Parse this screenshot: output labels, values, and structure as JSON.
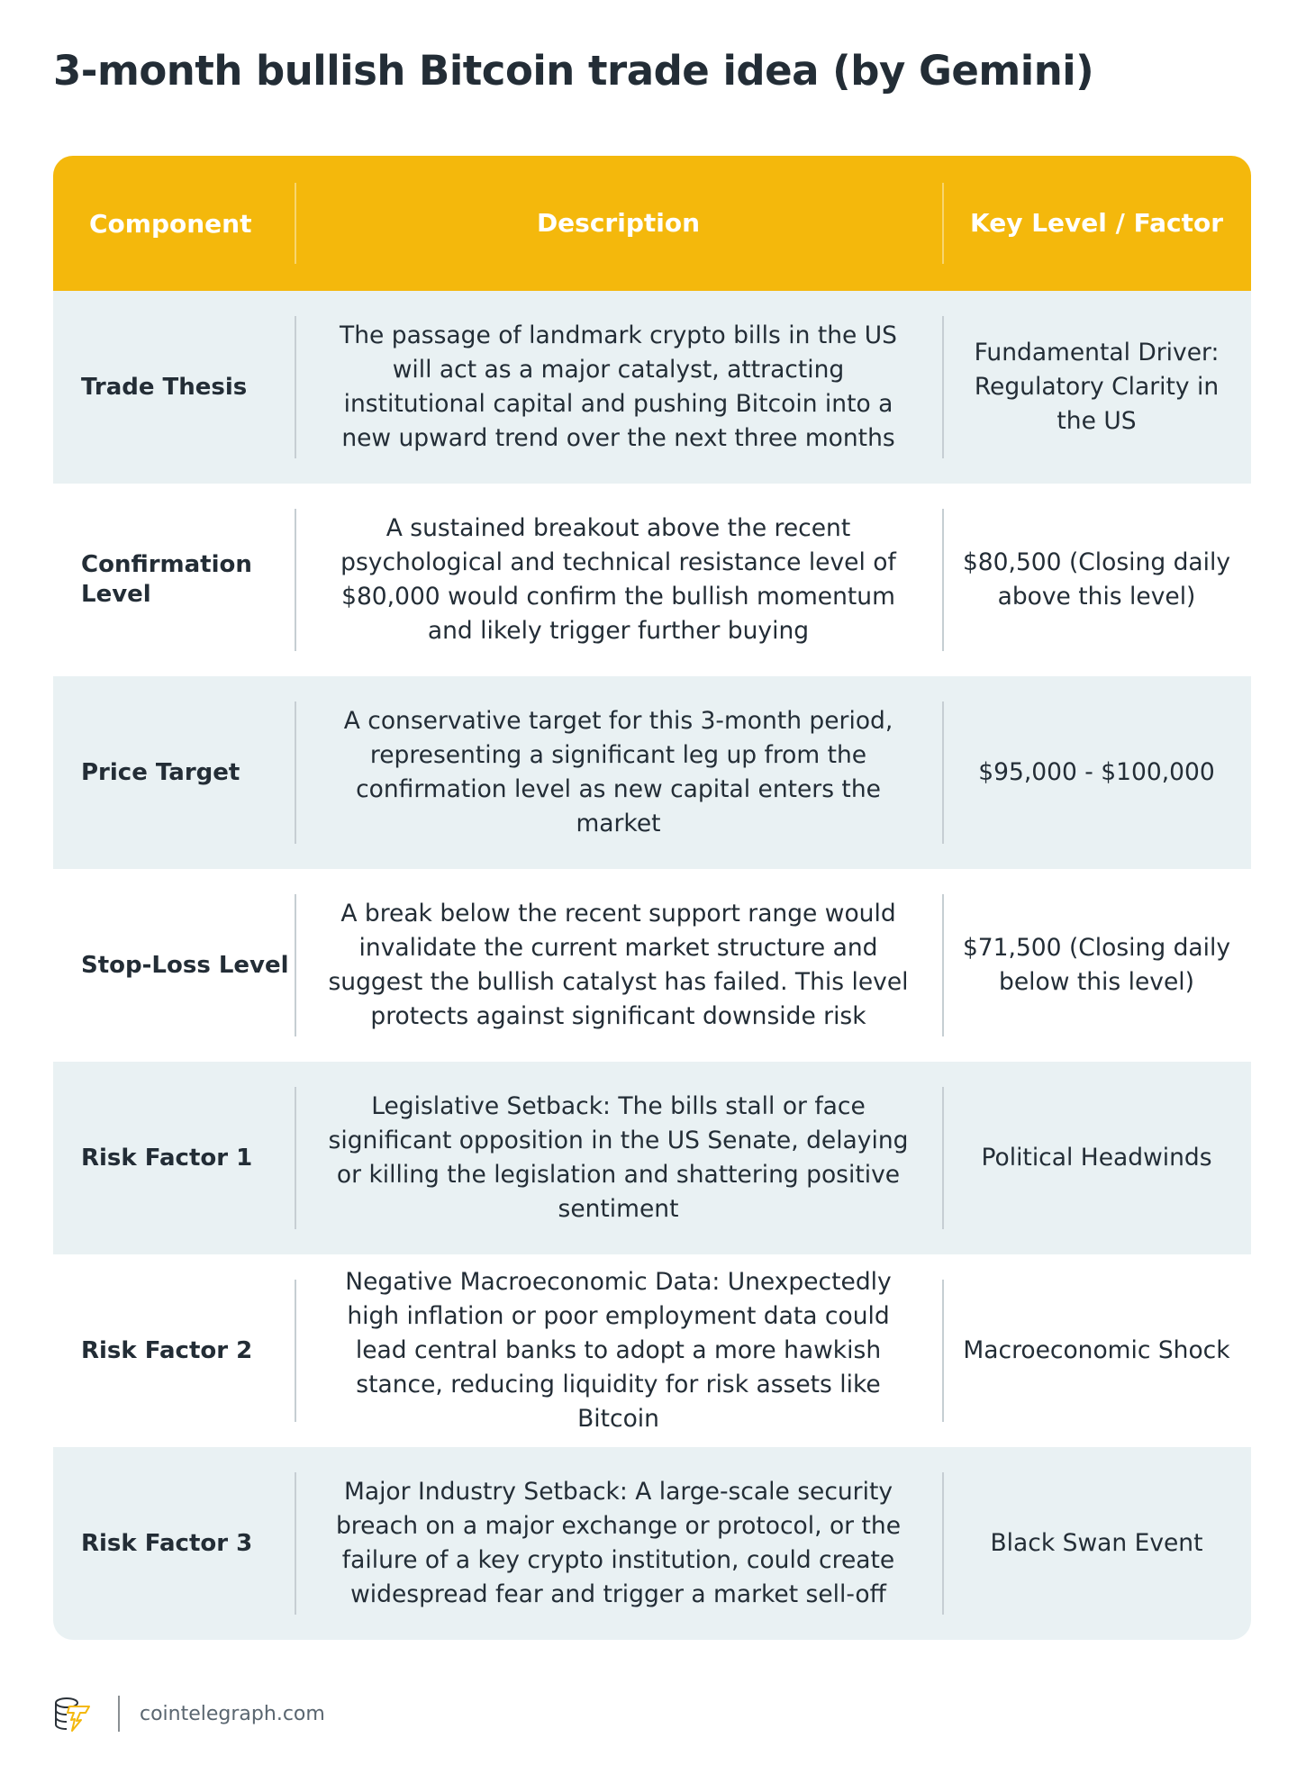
{
  "title": "3-month bullish Bitcoin trade idea (by Gemini)",
  "table": {
    "headers": [
      "Component",
      "Description",
      "Key Level / Factor"
    ],
    "rows": [
      {
        "component": "Trade Thesis",
        "description": "The passage of landmark crypto bills in the US will act as a major catalyst, attracting institutional capital and pushing Bitcoin into a new upward trend over the next three months",
        "key": "Fundamental Driver: Regulatory Clarity in the US"
      },
      {
        "component": "Confirmation Level",
        "description": "A sustained breakout above the recent psychological and technical resistance level of $80,000 would confirm the bullish momentum and likely trigger further buying",
        "key": "$80,500 (Closing daily above this level)"
      },
      {
        "component": "Price Target",
        "description": "A conservative target for this 3-month period, representing a significant leg up from the confirmation level as new capital enters the market",
        "key": "$95,000 - $100,000"
      },
      {
        "component": "Stop-Loss Level",
        "description": "A break below the recent support range would invalidate the current market structure and suggest the bullish catalyst has failed. This level protects against significant downside risk",
        "key": "$71,500 (Closing daily below this level)"
      },
      {
        "component": "Risk Factor 1",
        "description": "Legislative Setback: The bills stall or face significant opposition in the US Senate, delaying or killing the legislation and shattering positive sentiment",
        "key": "Political Headwinds"
      },
      {
        "component": "Risk Factor 2",
        "description": "Negative Macroeconomic Data: Unexpectedly high inflation or poor employment data could lead central banks to adopt a more hawkish stance, reducing liquidity for risk assets like Bitcoin",
        "key": "Macroeconomic Shock"
      },
      {
        "component": "Risk Factor 3",
        "description": "Major Industry Setback: A large-scale security breach on a major exchange or protocol, or the failure of a key crypto institution, could create widespread fear and trigger a market sell-off",
        "key": "Black Swan Event"
      }
    ]
  },
  "footer": {
    "site": "cointelegraph.com",
    "logo_icon": "cointelegraph-logo-icon"
  },
  "colors": {
    "header": "#f4b80c",
    "alt_row": "#e9f1f3",
    "text": "#232d36"
  }
}
